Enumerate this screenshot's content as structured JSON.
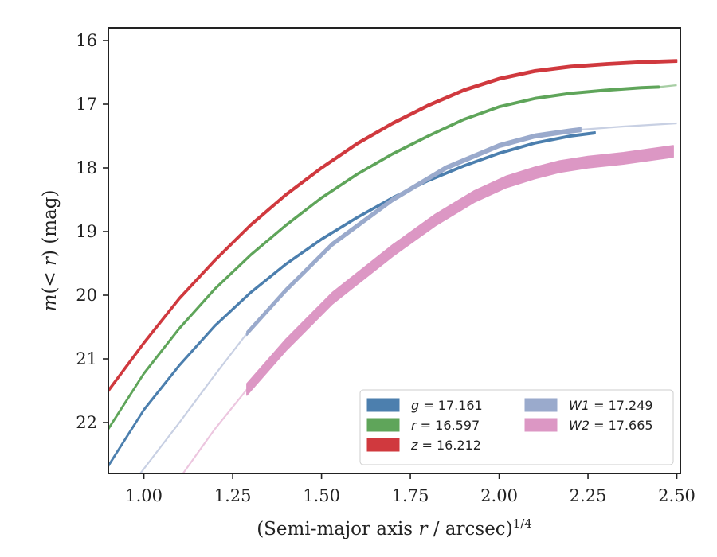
{
  "chart_data": {
    "type": "line",
    "title": "",
    "xlabel": "(Semi-major axis r / arcsec)",
    "xlabel_parts": {
      "pre": "(Semi-major axis ",
      "var": "r",
      "post": " / arcsec)",
      "sup": "1/4"
    },
    "ylabel": "m(< r) (mag)",
    "ylabel_parts": {
      "pre": "m",
      "mid": "(< ",
      "var": "r",
      "post": ") (mag)"
    },
    "xlim": [
      0.9,
      2.51
    ],
    "ylim": [
      22.8,
      15.8
    ],
    "y_inverted": true,
    "xticks": [
      "1.00",
      "1.25",
      "1.50",
      "1.75",
      "2.00",
      "2.25",
      "2.50"
    ],
    "xtick_values": [
      1.0,
      1.25,
      1.5,
      1.75,
      2.0,
      2.25,
      2.5
    ],
    "yticks": [
      "16",
      "17",
      "18",
      "19",
      "20",
      "21",
      "22"
    ],
    "ytick_values": [
      16,
      17,
      18,
      19,
      20,
      21,
      22
    ],
    "grid": false,
    "legend_position": "lower-right",
    "series": [
      {
        "name": "g = 17.161",
        "band": "g",
        "value": "17.161",
        "color": "#4c7fae",
        "band_width_mag": 0.03,
        "x": [
          0.9,
          1.0,
          1.1,
          1.2,
          1.3,
          1.4,
          1.5,
          1.6,
          1.7,
          1.8,
          1.9,
          2.0,
          2.1,
          2.2,
          2.27
        ],
        "y": [
          22.68,
          21.8,
          21.1,
          20.48,
          19.96,
          19.51,
          19.12,
          18.78,
          18.47,
          18.2,
          17.97,
          17.77,
          17.61,
          17.5,
          17.45
        ],
        "faint_x": [],
        "faint_y": []
      },
      {
        "name": "r = 16.597",
        "band": "r",
        "value": "16.597",
        "color": "#5fa55a",
        "band_width_mag": 0.03,
        "x": [
          0.9,
          1.0,
          1.1,
          1.2,
          1.3,
          1.4,
          1.5,
          1.6,
          1.7,
          1.8,
          1.9,
          2.0,
          2.1,
          2.2,
          2.3,
          2.4,
          2.45
        ],
        "y": [
          22.1,
          21.23,
          20.52,
          19.9,
          19.37,
          18.9,
          18.47,
          18.1,
          17.78,
          17.5,
          17.24,
          17.04,
          16.91,
          16.83,
          16.78,
          16.74,
          16.73
        ],
        "faint_x": [
          2.45,
          2.5
        ],
        "faint_y": [
          16.73,
          16.7
        ]
      },
      {
        "name": "z = 16.212",
        "band": "z",
        "value": "16.212",
        "color": "#d0393e",
        "band_width_mag": 0.04,
        "x": [
          0.9,
          1.0,
          1.1,
          1.2,
          1.3,
          1.4,
          1.5,
          1.6,
          1.7,
          1.8,
          1.9,
          2.0,
          2.1,
          2.2,
          2.3,
          2.4,
          2.5
        ],
        "y": [
          21.5,
          20.75,
          20.05,
          19.45,
          18.9,
          18.42,
          18.0,
          17.62,
          17.3,
          17.02,
          16.78,
          16.6,
          16.48,
          16.41,
          16.37,
          16.34,
          16.32
        ],
        "faint_x": [],
        "faint_y": []
      },
      {
        "name": "W1 = 17.249",
        "band": "W1",
        "value": "17.249",
        "color": "#9aaacc",
        "band_width_mag": 0.06,
        "x": [
          1.29,
          1.4,
          1.53,
          1.7,
          1.85,
          2.0,
          2.1,
          2.2,
          2.23
        ],
        "y": [
          20.6,
          19.92,
          19.2,
          18.5,
          18.0,
          17.65,
          17.5,
          17.42,
          17.4
        ],
        "faint_x": [
          0.99,
          1.1,
          1.2,
          1.29
        ],
        "faint_y": [
          22.8,
          22.0,
          21.25,
          20.6
        ],
        "faint_x2": [
          2.23,
          2.35,
          2.5
        ],
        "faint_y2": [
          17.4,
          17.35,
          17.3
        ]
      },
      {
        "name": "W2 = 17.665",
        "band": "W2",
        "value": "17.665",
        "color": "#dc97c4",
        "band_width_mag": 0.18,
        "x": [
          1.29,
          1.4,
          1.53,
          1.7,
          1.82,
          1.93,
          2.02,
          2.1,
          2.17,
          2.25,
          2.35,
          2.44,
          2.49
        ],
        "y": [
          21.48,
          20.78,
          20.05,
          19.3,
          18.82,
          18.45,
          18.22,
          18.08,
          17.98,
          17.91,
          17.85,
          17.78,
          17.74
        ],
        "faint_x": [
          1.11,
          1.2,
          1.29
        ],
        "faint_y": [
          22.8,
          22.1,
          21.48
        ]
      }
    ]
  }
}
